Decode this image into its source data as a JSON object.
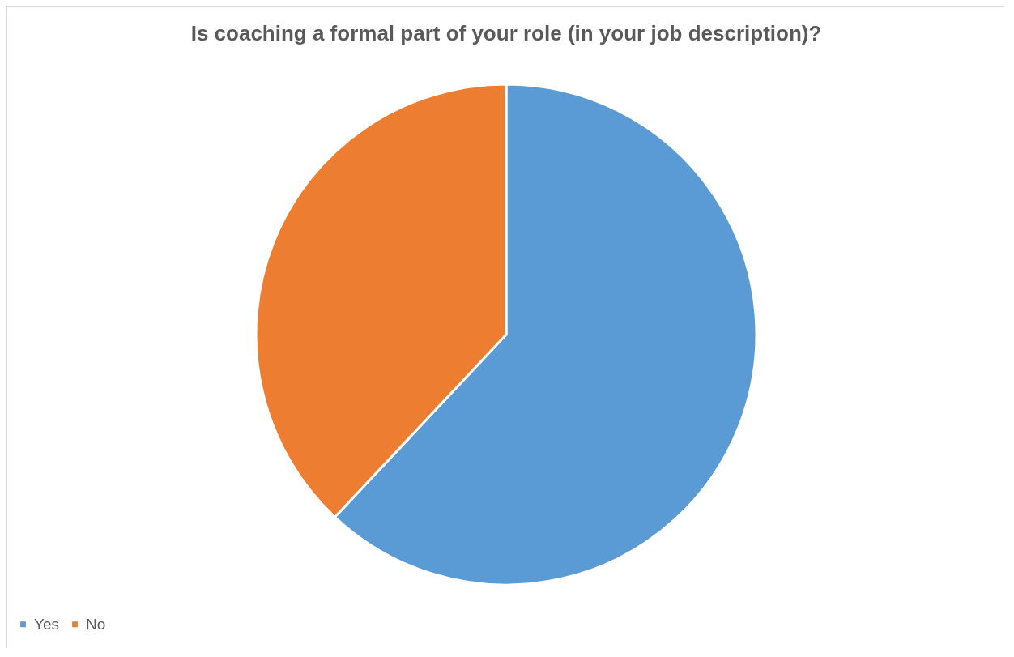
{
  "chart_data": {
    "type": "pie",
    "title": "Is coaching a formal part of your role (in your job description)?",
    "categories": [
      "Yes",
      "No"
    ],
    "values": [
      62,
      38
    ],
    "colors": [
      "#5b9bd5",
      "#ed7d31"
    ],
    "legend": "bottom"
  }
}
